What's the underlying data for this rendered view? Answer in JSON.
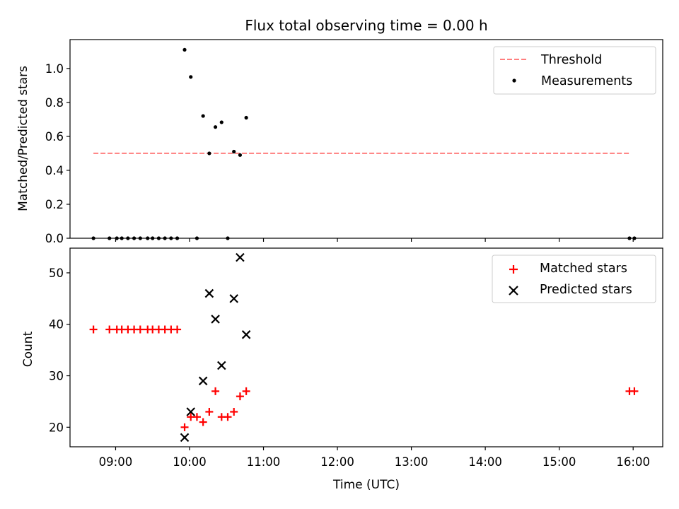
{
  "colors": {
    "threshold": "#ff7f7f",
    "measurement": "#000000",
    "matched": "#ff0000",
    "predicted": "#000000"
  },
  "chart_data": [
    {
      "type": "scatter",
      "title": "Flux total observing time = 0.00 h",
      "xlabel": "",
      "ylabel": "Matched/Predicted stars",
      "xlim": [
        "08:23",
        "16:24"
      ],
      "ylim": [
        0,
        1.17
      ],
      "yticks": [
        "0.0",
        "0.2",
        "0.4",
        "0.6",
        "0.8",
        "1.0"
      ],
      "grid": false,
      "legend_position": "top-right",
      "threshold": {
        "name": "Threshold",
        "y": 0.5,
        "x_start": "08:42",
        "x_end": "15:57",
        "style": "dashed"
      },
      "series": [
        {
          "name": "Measurements",
          "marker": "dot",
          "points": [
            [
              "08:42",
              0.0
            ],
            [
              "08:55",
              0.0
            ],
            [
              "09:01",
              0.0
            ],
            [
              "09:05",
              0.0
            ],
            [
              "09:10",
              0.0
            ],
            [
              "09:15",
              0.0
            ],
            [
              "09:20",
              0.0
            ],
            [
              "09:26",
              0.0
            ],
            [
              "09:30",
              0.0
            ],
            [
              "09:35",
              0.0
            ],
            [
              "09:40",
              0.0
            ],
            [
              "09:45",
              0.0
            ],
            [
              "09:50",
              0.0
            ],
            [
              "09:56",
              1.11
            ],
            [
              "10:01",
              0.95
            ],
            [
              "10:06",
              0.0
            ],
            [
              "10:11",
              0.72
            ],
            [
              "10:16",
              0.5
            ],
            [
              "10:21",
              0.655
            ],
            [
              "10:26",
              0.683
            ],
            [
              "10:31",
              0.0
            ],
            [
              "10:36",
              0.51
            ],
            [
              "10:41",
              0.49
            ],
            [
              "10:46",
              0.71
            ],
            [
              "15:57",
              0.0
            ],
            [
              "16:01",
              0.0
            ]
          ]
        }
      ]
    },
    {
      "type": "scatter",
      "title": "",
      "xlabel": "Time (UTC)",
      "ylabel": "Count",
      "xlim": [
        "08:23",
        "16:24"
      ],
      "ylim": [
        16.2,
        54.8
      ],
      "yticks": [
        "20",
        "30",
        "40",
        "50"
      ],
      "xticks": [
        "09:00",
        "10:00",
        "11:00",
        "12:00",
        "13:00",
        "14:00",
        "15:00",
        "16:00"
      ],
      "grid": false,
      "legend_position": "top-right",
      "series": [
        {
          "name": "Matched stars",
          "marker": "plus",
          "points": [
            [
              "08:42",
              39
            ],
            [
              "08:55",
              39
            ],
            [
              "09:01",
              39
            ],
            [
              "09:05",
              39
            ],
            [
              "09:10",
              39
            ],
            [
              "09:15",
              39
            ],
            [
              "09:20",
              39
            ],
            [
              "09:26",
              39
            ],
            [
              "09:30",
              39
            ],
            [
              "09:35",
              39
            ],
            [
              "09:40",
              39
            ],
            [
              "09:45",
              39
            ],
            [
              "09:50",
              39
            ],
            [
              "09:56",
              20
            ],
            [
              "10:01",
              22
            ],
            [
              "10:06",
              22
            ],
            [
              "10:11",
              21
            ],
            [
              "10:16",
              23
            ],
            [
              "10:21",
              27
            ],
            [
              "10:26",
              22
            ],
            [
              "10:31",
              22
            ],
            [
              "10:36",
              23
            ],
            [
              "10:41",
              26
            ],
            [
              "10:46",
              27
            ],
            [
              "15:57",
              27
            ],
            [
              "16:01",
              27
            ]
          ]
        },
        {
          "name": "Predicted stars",
          "marker": "x",
          "points": [
            [
              "09:56",
              18
            ],
            [
              "10:01",
              23
            ],
            [
              "10:11",
              29
            ],
            [
              "10:16",
              46
            ],
            [
              "10:21",
              41
            ],
            [
              "10:26",
              32
            ],
            [
              "10:36",
              45
            ],
            [
              "10:41",
              53
            ],
            [
              "10:46",
              38
            ]
          ]
        }
      ]
    }
  ]
}
